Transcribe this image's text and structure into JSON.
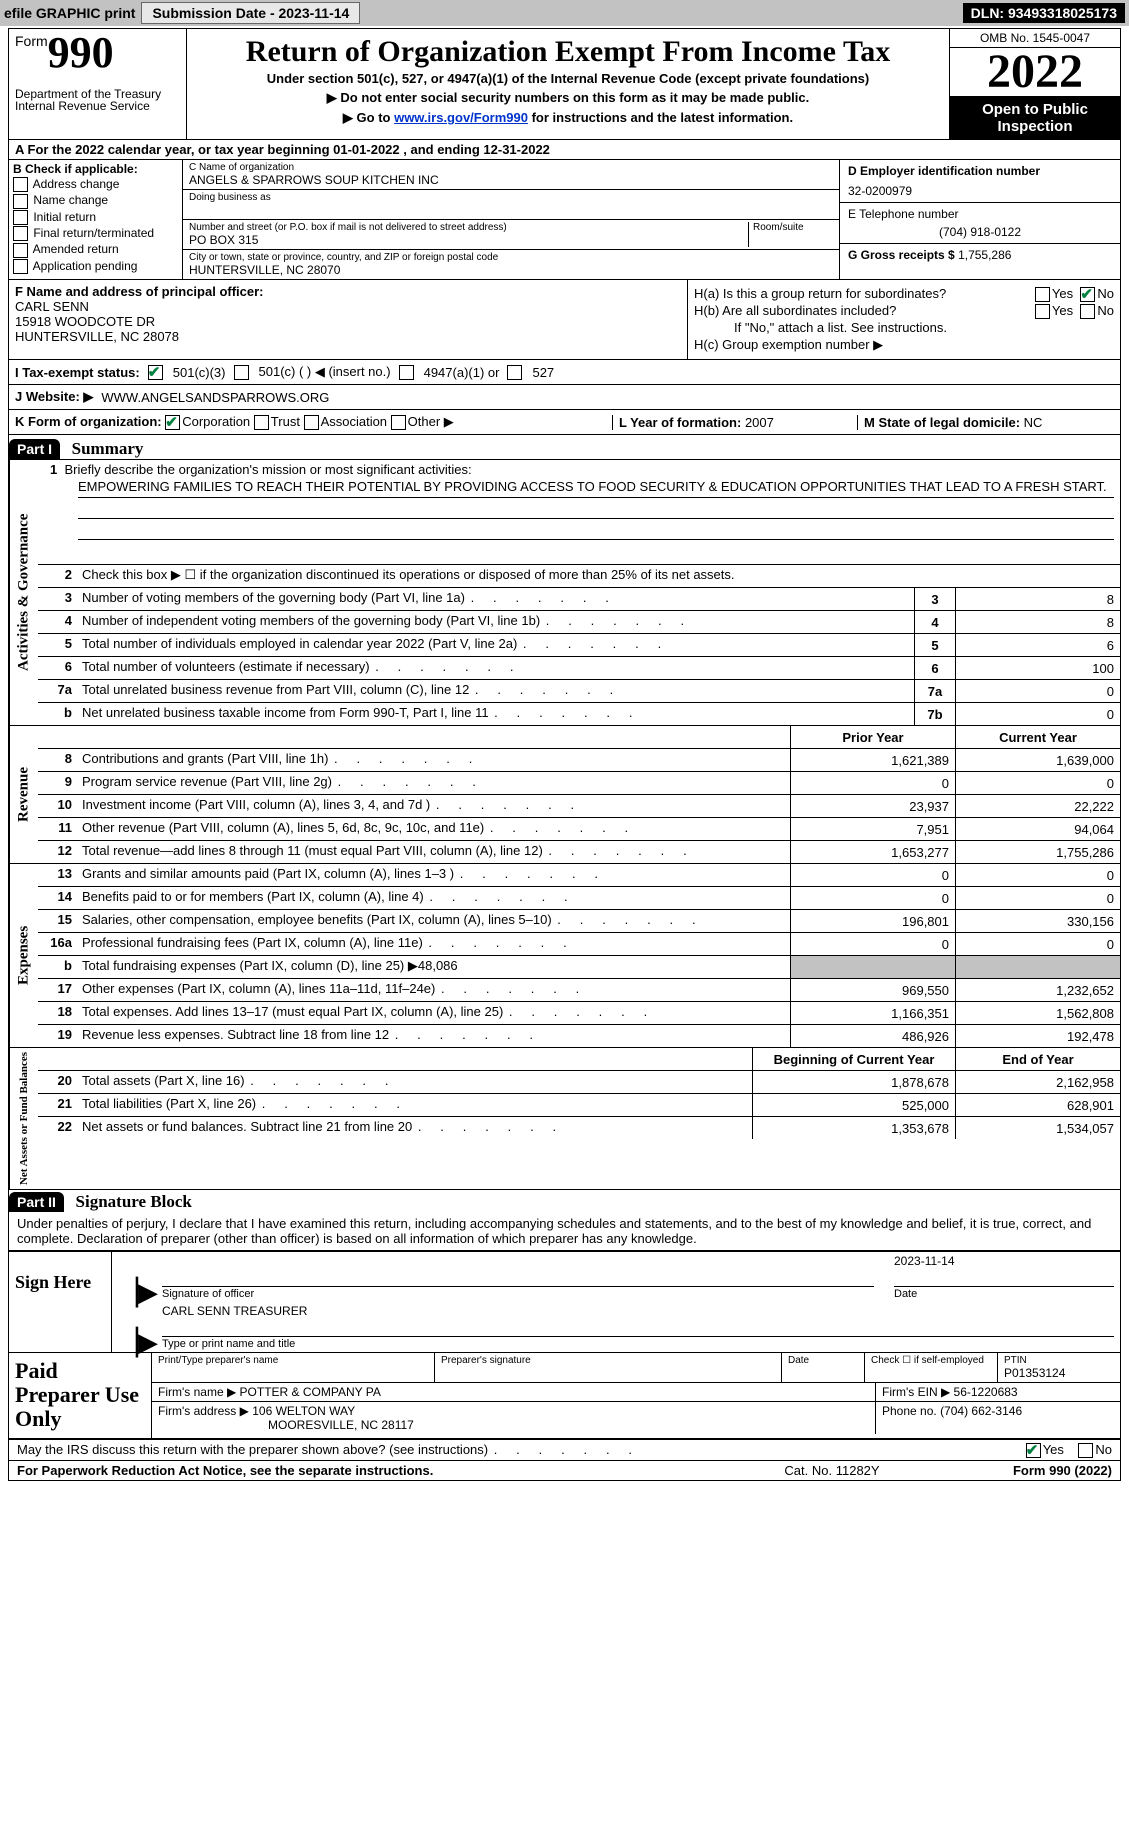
{
  "topbar": {
    "efile": "efile GRAPHIC print",
    "submission": "Submission Date - 2023-11-14",
    "dln": "DLN: 93493318025173"
  },
  "header": {
    "form_word": "Form",
    "form_no": "990",
    "title": "Return of Organization Exempt From Income Tax",
    "sub": "Under section 501(c), 527, or 4947(a)(1) of the Internal Revenue Code (except private foundations)",
    "arrow1": "▶ Do not enter social security numbers on this form as it may be made public.",
    "arrow2_pre": "▶ Go to ",
    "arrow2_link": "www.irs.gov/Form990",
    "arrow2_post": " for instructions and the latest information.",
    "dept": "Department of the Treasury",
    "irs": "Internal Revenue Service",
    "omb": "OMB No. 1545-0047",
    "year": "2022",
    "inspect": "Open to Public Inspection"
  },
  "lineA": "A For the 2022 calendar year, or tax year beginning 01-01-2022    , and ending 12-31-2022",
  "colB": {
    "label": "B Check if applicable:",
    "items": [
      "Address change",
      "Name change",
      "Initial return",
      "Final return/terminated",
      "Amended return",
      "Application pending"
    ]
  },
  "colC": {
    "name_label": "C Name of organization",
    "name": "ANGELS & SPARROWS SOUP KITCHEN INC",
    "dba_label": "Doing business as",
    "addr_label": "Number and street (or P.O. box if mail is not delivered to street address)",
    "room_label": "Room/suite",
    "addr": "PO BOX 315",
    "city_label": "City or town, state or province, country, and ZIP or foreign postal code",
    "city": "HUNTERSVILLE, NC  28070"
  },
  "colDE": {
    "d_label": "D Employer identification number",
    "ein": "32-0200979",
    "e_label": "E Telephone number",
    "phone": "(704) 918-0122",
    "g_label": "G Gross receipts $",
    "gross": "1,755,286"
  },
  "colF": {
    "label": "F Name and address of principal officer:",
    "name": "CARL SENN",
    "addr1": "15918 WOODCOTE DR",
    "addr2": "HUNTERSVILLE, NC  28078"
  },
  "colH": {
    "ha": "H(a)  Is this a group return for subordinates?",
    "hb": "H(b)  Are all subordinates included?",
    "hb_note": "If \"No,\" attach a list. See instructions.",
    "hc": "H(c)  Group exemption number ▶",
    "yes": "Yes",
    "no": "No"
  },
  "rowI": {
    "label": "I  Tax-exempt status:",
    "c3": "501(c)(3)",
    "c": "501(c) (   ) ◀ (insert no.)",
    "a1": "4947(a)(1) or",
    "s527": "527"
  },
  "rowJ": {
    "label": "J  Website: ▶",
    "url": "WWW.ANGELSANDSPARROWS.ORG"
  },
  "rowK": {
    "label": "K Form of organization:",
    "corp": "Corporation",
    "trust": "Trust",
    "assoc": "Association",
    "other": "Other ▶",
    "l_label": "L Year of formation:",
    "l_val": "2007",
    "m_label": "M State of legal domicile:",
    "m_val": "NC"
  },
  "partI": {
    "hdr": "Part I",
    "title": "Summary",
    "mission_label": "1  Briefly describe the organization's mission or most significant activities:",
    "mission": "EMPOWERING FAMILIES TO REACH THEIR POTENTIAL BY PROVIDING ACCESS TO FOOD SECURITY & EDUCATION OPPORTUNITIES THAT LEAD TO A FRESH START.",
    "line2": "Check this box ▶ ☐ if the organization discontinued its operations or disposed of more than 25% of its net assets."
  },
  "sideLabels": {
    "ag": "Activities & Governance",
    "rev": "Revenue",
    "exp": "Expenses",
    "nafb": "Net Assets or Fund Balances"
  },
  "govRows": [
    {
      "n": "3",
      "t": "Number of voting members of the governing body (Part VI, line 1a)",
      "b": "3",
      "v": "8"
    },
    {
      "n": "4",
      "t": "Number of independent voting members of the governing body (Part VI, line 1b)",
      "b": "4",
      "v": "8"
    },
    {
      "n": "5",
      "t": "Total number of individuals employed in calendar year 2022 (Part V, line 2a)",
      "b": "5",
      "v": "6"
    },
    {
      "n": "6",
      "t": "Total number of volunteers (estimate if necessary)",
      "b": "6",
      "v": "100"
    },
    {
      "n": "7a",
      "t": "Total unrelated business revenue from Part VIII, column (C), line 12",
      "b": "7a",
      "v": "0"
    },
    {
      "n": "b",
      "t": "Net unrelated business taxable income from Form 990-T, Part I, line 11",
      "b": "7b",
      "v": "0"
    }
  ],
  "colHdrs": {
    "prior": "Prior Year",
    "current": "Current Year",
    "begin": "Beginning of Current Year",
    "end": "End of Year"
  },
  "revRows": [
    {
      "n": "8",
      "t": "Contributions and grants (Part VIII, line 1h)",
      "p": "1,621,389",
      "c": "1,639,000"
    },
    {
      "n": "9",
      "t": "Program service revenue (Part VIII, line 2g)",
      "p": "0",
      "c": "0"
    },
    {
      "n": "10",
      "t": "Investment income (Part VIII, column (A), lines 3, 4, and 7d )",
      "p": "23,937",
      "c": "22,222"
    },
    {
      "n": "11",
      "t": "Other revenue (Part VIII, column (A), lines 5, 6d, 8c, 9c, 10c, and 11e)",
      "p": "7,951",
      "c": "94,064"
    },
    {
      "n": "12",
      "t": "Total revenue—add lines 8 through 11 (must equal Part VIII, column (A), line 12)",
      "p": "1,653,277",
      "c": "1,755,286"
    }
  ],
  "expRows": [
    {
      "n": "13",
      "t": "Grants and similar amounts paid (Part IX, column (A), lines 1–3 )",
      "p": "0",
      "c": "0"
    },
    {
      "n": "14",
      "t": "Benefits paid to or for members (Part IX, column (A), line 4)",
      "p": "0",
      "c": "0"
    },
    {
      "n": "15",
      "t": "Salaries, other compensation, employee benefits (Part IX, column (A), lines 5–10)",
      "p": "196,801",
      "c": "330,156"
    },
    {
      "n": "16a",
      "t": "Professional fundraising fees (Part IX, column (A), line 11e)",
      "p": "0",
      "c": "0"
    },
    {
      "n": "b",
      "t": "Total fundraising expenses (Part IX, column (D), line 25) ▶48,086",
      "p": "",
      "c": "",
      "shade": true
    },
    {
      "n": "17",
      "t": "Other expenses (Part IX, column (A), lines 11a–11d, 11f–24e)",
      "p": "969,550",
      "c": "1,232,652"
    },
    {
      "n": "18",
      "t": "Total expenses. Add lines 13–17 (must equal Part IX, column (A), line 25)",
      "p": "1,166,351",
      "c": "1,562,808"
    },
    {
      "n": "19",
      "t": "Revenue less expenses. Subtract line 18 from line 12",
      "p": "486,926",
      "c": "192,478"
    }
  ],
  "naRows": [
    {
      "n": "20",
      "t": "Total assets (Part X, line 16)",
      "p": "1,878,678",
      "c": "2,162,958"
    },
    {
      "n": "21",
      "t": "Total liabilities (Part X, line 26)",
      "p": "525,000",
      "c": "628,901"
    },
    {
      "n": "22",
      "t": "Net assets or fund balances. Subtract line 21 from line 20",
      "p": "1,353,678",
      "c": "1,534,057"
    }
  ],
  "partII": {
    "hdr": "Part II",
    "title": "Signature Block",
    "decl": "Under penalties of perjury, I declare that I have examined this return, including accompanying schedules and statements, and to the best of my knowledge and belief, it is true, correct, and complete. Declaration of preparer (other than officer) is based on all information of which preparer has any knowledge."
  },
  "sign": {
    "label": "Sign Here",
    "sig_label": "Signature of officer",
    "date_label": "Date",
    "date": "2023-11-14",
    "name": "CARL SENN  TREASURER",
    "name_label": "Type or print name and title"
  },
  "prep": {
    "label": "Paid Preparer Use Only",
    "pt_label": "Print/Type preparer's name",
    "ps_label": "Preparer's signature",
    "d_label": "Date",
    "se_label": "Check ☐ if self-employed",
    "ptin_label": "PTIN",
    "ptin": "P01353124",
    "firm_label": "Firm's name    ▶",
    "firm": "POTTER & COMPANY PA",
    "ein_label": "Firm's EIN ▶",
    "ein": "56-1220683",
    "addr_label": "Firm's address ▶",
    "addr1": "106 WELTON WAY",
    "addr2": "MOORESVILLE, NC  28117",
    "phone_label": "Phone no.",
    "phone": "(704) 662-3146"
  },
  "discuss": {
    "text": "May the IRS discuss this return with the preparer shown above? (see instructions)",
    "yes": "Yes",
    "no": "No"
  },
  "footer": {
    "left": "For Paperwork Reduction Act Notice, see the separate instructions.",
    "mid": "Cat. No. 11282Y",
    "right": "Form 990 (2022)"
  }
}
